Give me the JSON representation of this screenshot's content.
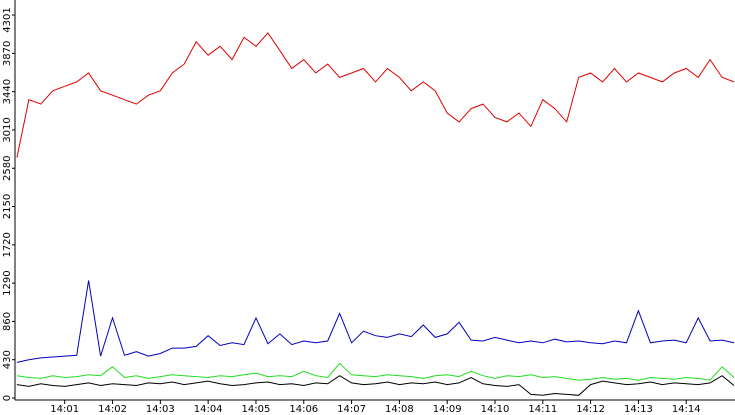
{
  "chart_data": {
    "type": "line",
    "x": [
      0,
      0.25,
      0.5,
      0.75,
      1,
      1.25,
      1.5,
      1.75,
      2,
      2.25,
      2.5,
      2.75,
      3,
      3.25,
      3.5,
      3.75,
      4,
      4.25,
      4.5,
      4.75,
      5,
      5.25,
      5.5,
      5.75,
      6,
      6.25,
      6.5,
      6.75,
      7,
      7.25,
      7.5,
      7.75,
      8,
      8.25,
      8.5,
      8.75,
      9,
      9.25,
      9.5,
      9.75,
      10,
      10.25,
      10.5,
      10.75,
      11,
      11.25,
      11.5,
      11.75,
      12,
      12.25,
      12.5,
      12.75,
      13,
      13.25,
      13.5,
      13.75,
      14,
      14.25,
      14.5,
      14.75,
      15
    ],
    "series": [
      {
        "color": "#e00000",
        "values": [
          2700,
          3350,
          3300,
          3450,
          3500,
          3550,
          3650,
          3450,
          3400,
          3350,
          3300,
          3400,
          3450,
          3650,
          3750,
          4000,
          3850,
          3950,
          3800,
          4050,
          3950,
          4100,
          3900,
          3700,
          3800,
          3650,
          3750,
          3600,
          3650,
          3700,
          3550,
          3700,
          3600,
          3450,
          3550,
          3450,
          3200,
          3100,
          3250,
          3300,
          3150,
          3100,
          3200,
          3050,
          3350,
          3250,
          3100,
          3600,
          3650,
          3550,
          3700,
          3550,
          3650,
          3600,
          3550,
          3650,
          3700,
          3600,
          3800,
          3600,
          3550
        ]
      },
      {
        "color": "#0000c0",
        "values": [
          400,
          430,
          450,
          460,
          470,
          480,
          1320,
          470,
          900,
          480,
          520,
          470,
          500,
          560,
          560,
          580,
          700,
          590,
          620,
          600,
          900,
          610,
          720,
          600,
          640,
          620,
          640,
          950,
          620,
          750,
          700,
          680,
          720,
          690,
          820,
          680,
          720,
          850,
          650,
          640,
          680,
          650,
          620,
          640,
          620,
          660,
          630,
          640,
          620,
          610,
          640,
          620,
          980,
          620,
          640,
          650,
          620,
          900,
          640,
          650,
          620
        ]
      },
      {
        "color": "#22dd22",
        "values": [
          250,
          230,
          220,
          250,
          230,
          240,
          260,
          250,
          350,
          230,
          250,
          220,
          240,
          260,
          250,
          240,
          230,
          250,
          240,
          260,
          280,
          240,
          250,
          240,
          300,
          250,
          230,
          390,
          260,
          250,
          240,
          260,
          250,
          240,
          220,
          250,
          260,
          240,
          300,
          250,
          220,
          250,
          240,
          260,
          230,
          240,
          220,
          200,
          210,
          230,
          210,
          220,
          200,
          230,
          220,
          210,
          230,
          220,
          200,
          350,
          230
        ]
      },
      {
        "color": "#000000",
        "values": [
          150,
          130,
          160,
          140,
          130,
          150,
          170,
          140,
          160,
          150,
          140,
          170,
          160,
          180,
          150,
          170,
          190,
          160,
          140,
          150,
          170,
          180,
          150,
          160,
          140,
          170,
          160,
          250,
          170,
          150,
          160,
          180,
          150,
          170,
          160,
          180,
          150,
          170,
          230,
          160,
          140,
          130,
          150,
          40,
          30,
          50,
          40,
          30,
          150,
          190,
          170,
          150,
          160,
          180,
          150,
          170,
          160,
          150,
          170,
          250,
          140
        ]
      }
    ],
    "xlim": [
      -0.04,
      15.02
    ],
    "xticks": [
      {
        "value": 1,
        "label": "14:01"
      },
      {
        "value": 2,
        "label": "14:02"
      },
      {
        "value": 3,
        "label": "14:03"
      },
      {
        "value": 4,
        "label": "14:04"
      },
      {
        "value": 5,
        "label": "14:05"
      },
      {
        "value": 6,
        "label": "14:06"
      },
      {
        "value": 7,
        "label": "14:07"
      },
      {
        "value": 8,
        "label": "14:08"
      },
      {
        "value": 9,
        "label": "14:09"
      },
      {
        "value": 10,
        "label": "14:10"
      },
      {
        "value": 11,
        "label": "14:11"
      },
      {
        "value": 12,
        "label": "14:12"
      },
      {
        "value": 13,
        "label": "14:13"
      },
      {
        "value": 14,
        "label": "14:14"
      }
    ],
    "ylim": [
      0,
      4301
    ],
    "yticks": [
      0,
      430,
      860,
      1290,
      1720,
      2150,
      2580,
      3010,
      3440,
      3870,
      4301
    ]
  }
}
